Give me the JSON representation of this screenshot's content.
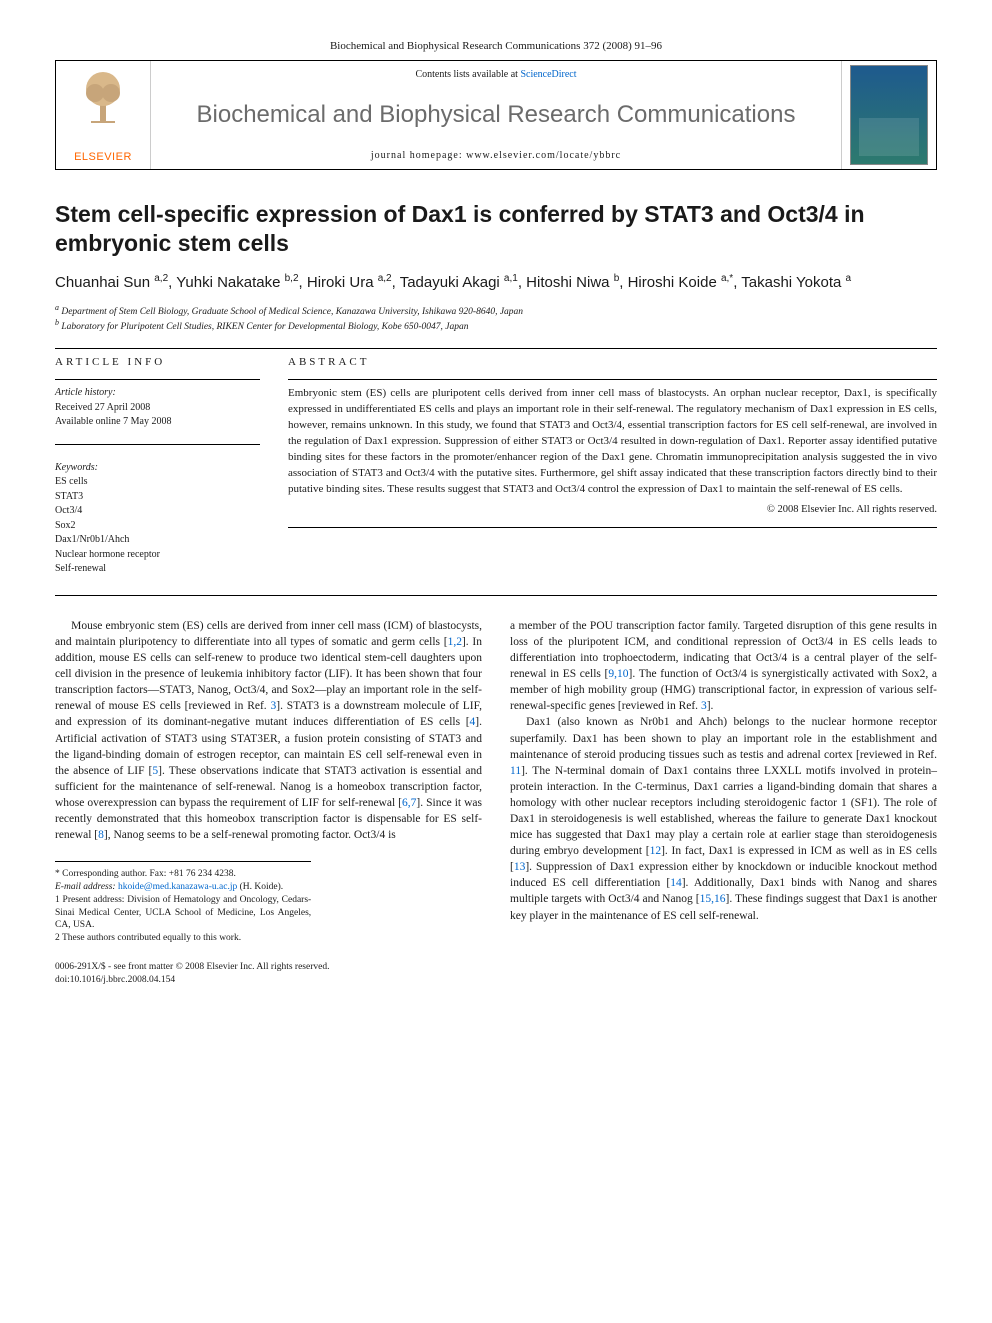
{
  "journal_ref": "Biochemical and Biophysical Research Communications 372 (2008) 91–96",
  "header": {
    "publisher": "ELSEVIER",
    "contents_prefix": "Contents lists available at ",
    "contents_link": "ScienceDirect",
    "journal_name": "Biochemical and Biophysical Research Communications",
    "homepage_prefix": "journal homepage: ",
    "homepage_url": "www.elsevier.com/locate/ybbrc",
    "cover_title_small": "Biochemical and Biophysical Research Communications"
  },
  "article": {
    "title": "Stem cell-specific expression of Dax1 is conferred by STAT3 and Oct3/4 in embryonic stem cells",
    "authors_html": "Chuanhai Sun <sup>a,2</sup>, Yuhki Nakatake <sup>b,2</sup>, Hiroki Ura <sup>a,2</sup>, Tadayuki Akagi <sup>a,1</sup>, Hitoshi Niwa <sup>b</sup>, Hiroshi Koide <sup>a,*</sup>, Takashi Yokota <sup>a</sup>",
    "affiliations": [
      "a Department of Stem Cell Biology, Graduate School of Medical Science, Kanazawa University, Ishikawa 920-8640, Japan",
      "b Laboratory for Pluripotent Cell Studies, RIKEN Center for Developmental Biology, Kobe 650-0047, Japan"
    ]
  },
  "info": {
    "heading_left": "ARTICLE INFO",
    "history_label": "Article history:",
    "received": "Received 27 April 2008",
    "available": "Available online 7 May 2008",
    "keywords_label": "Keywords:",
    "keywords": [
      "ES cells",
      "STAT3",
      "Oct3/4",
      "Sox2",
      "Dax1/Nr0b1/Ahch",
      "Nuclear hormone receptor",
      "Self-renewal"
    ],
    "heading_right": "ABSTRACT",
    "abstract": "Embryonic stem (ES) cells are pluripotent cells derived from inner cell mass of blastocysts. An orphan nuclear receptor, Dax1, is specifically expressed in undifferentiated ES cells and plays an important role in their self-renewal. The regulatory mechanism of Dax1 expression in ES cells, however, remains unknown. In this study, we found that STAT3 and Oct3/4, essential transcription factors for ES cell self-renewal, are involved in the regulation of Dax1 expression. Suppression of either STAT3 or Oct3/4 resulted in down-regulation of Dax1. Reporter assay identified putative binding sites for these factors in the promoter/enhancer region of the Dax1 gene. Chromatin immunoprecipitation analysis suggested the in vivo association of STAT3 and Oct3/4 with the putative sites. Furthermore, gel shift assay indicated that these transcription factors directly bind to their putative binding sites. These results suggest that STAT3 and Oct3/4 control the expression of Dax1 to maintain the self-renewal of ES cells.",
    "copyright": "© 2008 Elsevier Inc. All rights reserved."
  },
  "body": {
    "col1": "Mouse embryonic stem (ES) cells are derived from inner cell mass (ICM) of blastocysts, and maintain pluripotency to differentiate into all types of somatic and germ cells [1,2]. In addition, mouse ES cells can self-renew to produce two identical stem-cell daughters upon cell division in the presence of leukemia inhibitory factor (LIF). It has been shown that four transcription factors—STAT3, Nanog, Oct3/4, and Sox2—play an important role in the self-renewal of mouse ES cells [reviewed in Ref. 3]. STAT3 is a downstream molecule of LIF, and expression of its dominant-negative mutant induces differentiation of ES cells [4]. Artificial activation of STAT3 using STAT3ER, a fusion protein consisting of STAT3 and the ligand-binding domain of estrogen receptor, can maintain ES cell self-renewal even in the absence of LIF [5]. These observations indicate that STAT3 activation is essential and sufficient for the maintenance of self-renewal. Nanog is a homeobox transcription factor, whose overexpression can bypass the requirement of LIF for self-renewal [6,7]. Since it was recently demonstrated that this homeobox transcription factor is dispensable for ES self-renewal [8], Nanog seems to be a self-renewal promoting factor. Oct3/4 is",
    "col2a": "a member of the POU transcription factor family. Targeted disruption of this gene results in loss of the pluripotent ICM, and conditional repression of Oct3/4 in ES cells leads to differentiation into trophoectoderm, indicating that Oct3/4 is a central player of the self-renewal in ES cells [9,10]. The function of Oct3/4 is synergistically activated with Sox2, a member of high mobility group (HMG) transcriptional factor, in expression of various self-renewal-specific genes [reviewed in Ref. 3].",
    "col2b": "Dax1 (also known as Nr0b1 and Ahch) belongs to the nuclear hormone receptor superfamily. Dax1 has been shown to play an important role in the establishment and maintenance of steroid producing tissues such as testis and adrenal cortex [reviewed in Ref. 11]. The N-terminal domain of Dax1 contains three LXXLL motifs involved in protein–protein interaction. In the C-terminus, Dax1 carries a ligand-binding domain that shares a homology with other nuclear receptors including steroidogenic factor 1 (SF1). The role of Dax1 in steroidogenesis is well established, whereas the failure to generate Dax1 knockout mice has suggested that Dax1 may play a certain role at earlier stage than steroidogenesis during embryo development [12]. In fact, Dax1 is expressed in ICM as well as in ES cells [13]. Suppression of Dax1 expression either by knockdown or inducible knockout method induced ES cell differentiation [14]. Additionally, Dax1 binds with Nanog and shares multiple targets with Oct3/4 and Nanog [15,16]. These findings suggest that Dax1 is another key player in the maintenance of ES cell self-renewal."
  },
  "footnotes": {
    "corr": "* Corresponding author. Fax: +81 76 234 4238.",
    "email_label": "E-mail address: ",
    "email": "hkoide@med.kanazawa-u.ac.jp",
    "email_who": " (H. Koide).",
    "n1": "1  Present address: Division of Hematology and Oncology, Cedars-Sinai Medical Center, UCLA School of Medicine, Los Angeles, CA, USA.",
    "n2": "2  These authors contributed equally to this work."
  },
  "bottom": {
    "left1": "0006-291X/$ - see front matter © 2008 Elsevier Inc. All rights reserved.",
    "left2": "doi:10.1016/j.bbrc.2008.04.154"
  },
  "colors": {
    "link": "#0066cc",
    "publisher": "#ff6600",
    "journal_title": "#6b6b6b"
  }
}
